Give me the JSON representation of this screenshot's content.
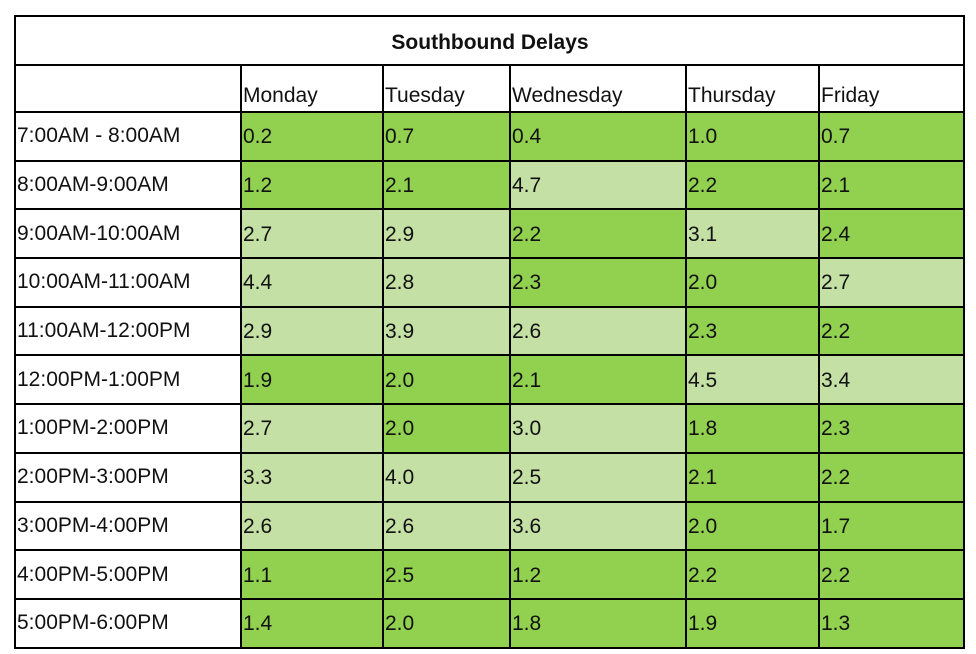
{
  "chart_data": {
    "type": "table",
    "title": "Southbound Delays",
    "columns": [
      "Monday",
      "Tuesday",
      "Wednesday",
      "Thursday",
      "Friday"
    ],
    "rows": [
      {
        "label": "7:00AM - 8:00AM",
        "values": [
          "0.2",
          "0.7",
          "0.4",
          "1.0",
          "0.7"
        ]
      },
      {
        "label": "8:00AM-9:00AM",
        "values": [
          "1.2",
          "2.1",
          "4.7",
          "2.2",
          "2.1"
        ]
      },
      {
        "label": "9:00AM-10:00AM",
        "values": [
          "2.7",
          "2.9",
          "2.2",
          "3.1",
          "2.4"
        ]
      },
      {
        "label": "10:00AM-11:00AM",
        "values": [
          "4.4",
          "2.8",
          "2.3",
          "2.0",
          "2.7"
        ]
      },
      {
        "label": "11:00AM-12:00PM",
        "values": [
          "2.9",
          "3.9",
          "2.6",
          "2.3",
          "2.2"
        ]
      },
      {
        "label": "12:00PM-1:00PM",
        "values": [
          "1.9",
          "2.0",
          "2.1",
          "4.5",
          "3.4"
        ]
      },
      {
        "label": "1:00PM-2:00PM",
        "values": [
          "2.7",
          "2.0",
          "3.0",
          "1.8",
          "2.3"
        ]
      },
      {
        "label": "2:00PM-3:00PM",
        "values": [
          "3.3",
          "4.0",
          "2.5",
          "2.1",
          "2.2"
        ]
      },
      {
        "label": "3:00PM-4:00PM",
        "values": [
          "2.6",
          "2.6",
          "3.6",
          "2.0",
          "1.7"
        ]
      },
      {
        "label": "4:00PM-5:00PM",
        "values": [
          "1.1",
          "2.5",
          "1.2",
          "2.2",
          "2.2"
        ]
      },
      {
        "label": "5:00PM-6:00PM",
        "values": [
          "1.4",
          "2.0",
          "1.8",
          "1.9",
          "1.3"
        ]
      }
    ],
    "shading": [
      [
        "dark",
        "dark",
        "dark",
        "dark",
        "dark"
      ],
      [
        "dark",
        "dark",
        "light",
        "dark",
        "dark"
      ],
      [
        "light",
        "light",
        "dark",
        "light",
        "dark"
      ],
      [
        "light",
        "light",
        "dark",
        "dark",
        "light"
      ],
      [
        "light",
        "light",
        "light",
        "dark",
        "dark"
      ],
      [
        "dark",
        "dark",
        "dark",
        "light",
        "light"
      ],
      [
        "light",
        "dark",
        "light",
        "dark",
        "dark"
      ],
      [
        "light",
        "light",
        "light",
        "dark",
        "dark"
      ],
      [
        "light",
        "light",
        "light",
        "dark",
        "dark"
      ],
      [
        "dark",
        "dark",
        "dark",
        "dark",
        "dark"
      ],
      [
        "dark",
        "dark",
        "dark",
        "dark",
        "dark"
      ]
    ],
    "colors": {
      "dark": "#92d050",
      "light": "#c4e0a4",
      "border": "#000000",
      "background": "#ffffff"
    }
  }
}
